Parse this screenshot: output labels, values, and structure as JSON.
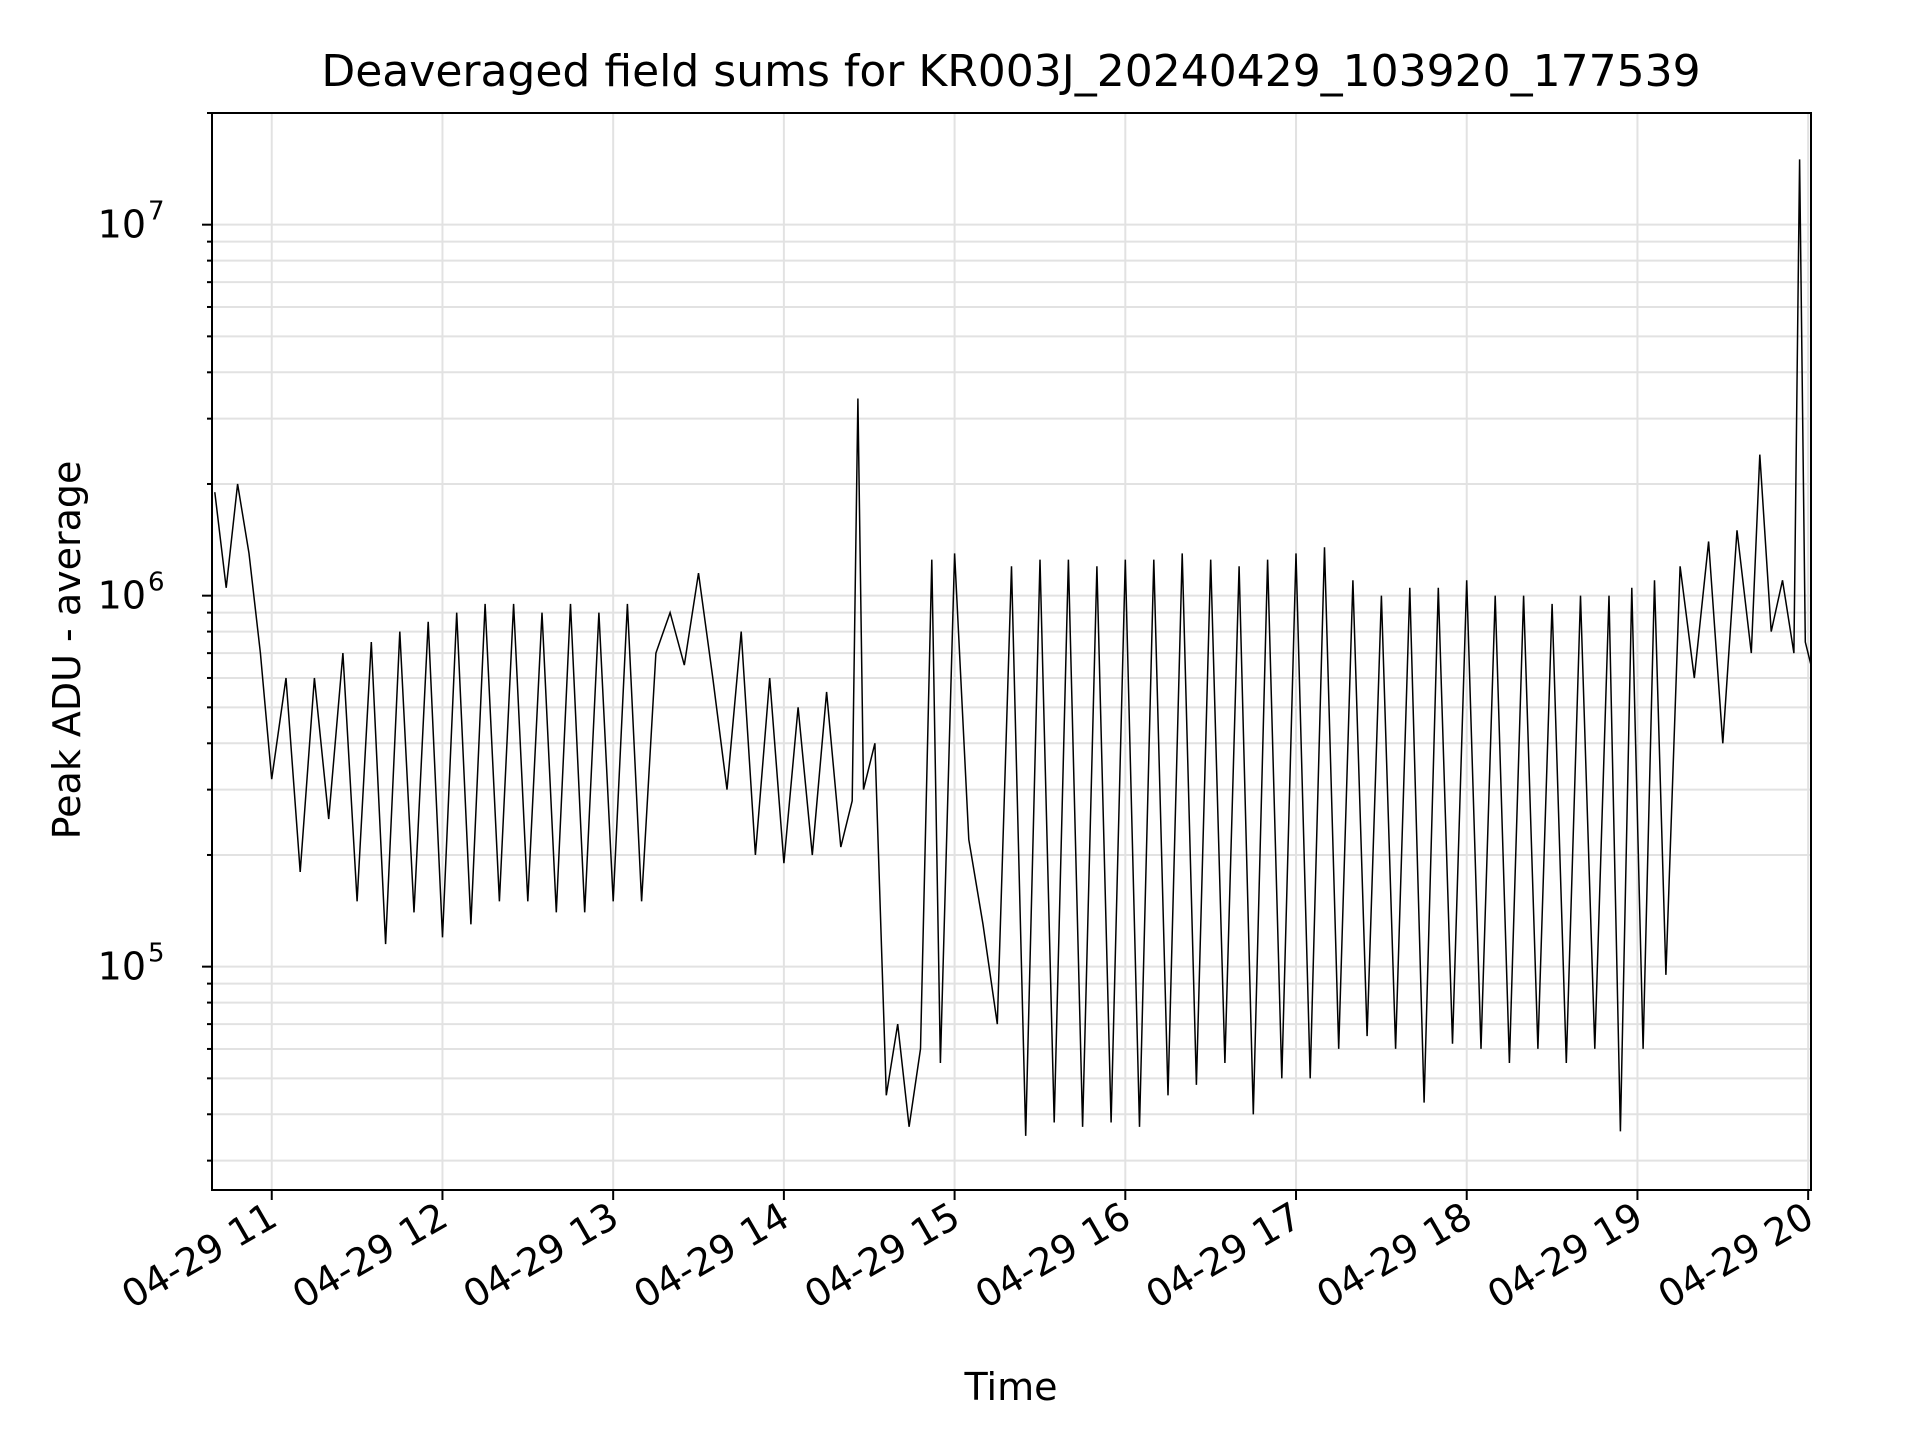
{
  "chart_data": {
    "type": "line",
    "title": "Deaveraged field sums for KR003J_20240429_103920_177539",
    "xlabel": "Time",
    "ylabel": "Peak ADU - average",
    "y_scale": "log",
    "xlim": [
      "04-29 10:39",
      "04-29 20:01"
    ],
    "ylim": [
      25000,
      20000000
    ],
    "grid": true,
    "grid_minor_y": true,
    "line_color": "#000000",
    "x_ticks": [
      "04-29 11",
      "04-29 12",
      "04-29 13",
      "04-29 14",
      "04-29 15",
      "04-29 16",
      "04-29 17",
      "04-29 18",
      "04-29 19",
      "04-29 20"
    ],
    "y_ticks": [
      {
        "value": 100000,
        "base": "10",
        "exp": "5"
      },
      {
        "value": 1000000,
        "base": "10",
        "exp": "6"
      },
      {
        "value": 10000000,
        "base": "10",
        "exp": "7"
      }
    ],
    "series": [
      {
        "values": [
          [
            "04-29 10:40",
            1900000
          ],
          [
            "04-29 10:44",
            1050000
          ],
          [
            "04-29 10:48",
            2000000
          ],
          [
            "04-29 10:52",
            1300000
          ],
          [
            "04-29 10:56",
            700000
          ],
          [
            "04-29 11:00",
            320000
          ],
          [
            "04-29 11:05",
            600000
          ],
          [
            "04-29 11:10",
            180000
          ],
          [
            "04-29 11:15",
            600000
          ],
          [
            "04-29 11:20",
            250000
          ],
          [
            "04-29 11:25",
            700000
          ],
          [
            "04-29 11:30",
            150000
          ],
          [
            "04-29 11:35",
            750000
          ],
          [
            "04-29 11:40",
            115000
          ],
          [
            "04-29 11:45",
            800000
          ],
          [
            "04-29 11:50",
            140000
          ],
          [
            "04-29 11:55",
            850000
          ],
          [
            "04-29 12:00",
            120000
          ],
          [
            "04-29 12:05",
            900000
          ],
          [
            "04-29 12:10",
            130000
          ],
          [
            "04-29 12:15",
            950000
          ],
          [
            "04-29 12:20",
            150000
          ],
          [
            "04-29 12:25",
            950000
          ],
          [
            "04-29 12:30",
            150000
          ],
          [
            "04-29 12:35",
            900000
          ],
          [
            "04-29 12:40",
            140000
          ],
          [
            "04-29 12:45",
            950000
          ],
          [
            "04-29 12:50",
            140000
          ],
          [
            "04-29 12:55",
            900000
          ],
          [
            "04-29 13:00",
            150000
          ],
          [
            "04-29 13:05",
            950000
          ],
          [
            "04-29 13:10",
            150000
          ],
          [
            "04-29 13:15",
            700000
          ],
          [
            "04-29 13:20",
            900000
          ],
          [
            "04-29 13:25",
            650000
          ],
          [
            "04-29 13:30",
            1150000
          ],
          [
            "04-29 13:35",
            600000
          ],
          [
            "04-29 13:40",
            300000
          ],
          [
            "04-29 13:45",
            800000
          ],
          [
            "04-29 13:50",
            200000
          ],
          [
            "04-29 13:55",
            600000
          ],
          [
            "04-29 14:00",
            190000
          ],
          [
            "04-29 14:05",
            500000
          ],
          [
            "04-29 14:10",
            200000
          ],
          [
            "04-29 14:15",
            550000
          ],
          [
            "04-29 14:20",
            210000
          ],
          [
            "04-29 14:24",
            280000
          ],
          [
            "04-29 14:26",
            3400000
          ],
          [
            "04-29 14:28",
            300000
          ],
          [
            "04-29 14:32",
            400000
          ],
          [
            "04-29 14:36",
            45000
          ],
          [
            "04-29 14:40",
            70000
          ],
          [
            "04-29 14:44",
            37000
          ],
          [
            "04-29 14:48",
            60000
          ],
          [
            "04-29 14:52",
            1250000
          ],
          [
            "04-29 14:55",
            55000
          ],
          [
            "04-29 15:00",
            1300000
          ],
          [
            "04-29 15:05",
            220000
          ],
          [
            "04-29 15:10",
            130000
          ],
          [
            "04-29 15:15",
            70000
          ],
          [
            "04-29 15:20",
            1200000
          ],
          [
            "04-29 15:25",
            35000
          ],
          [
            "04-29 15:30",
            1250000
          ],
          [
            "04-29 15:35",
            38000
          ],
          [
            "04-29 15:40",
            1250000
          ],
          [
            "04-29 15:45",
            37000
          ],
          [
            "04-29 15:50",
            1200000
          ],
          [
            "04-29 15:55",
            38000
          ],
          [
            "04-29 16:00",
            1250000
          ],
          [
            "04-29 16:05",
            37000
          ],
          [
            "04-29 16:10",
            1250000
          ],
          [
            "04-29 16:15",
            45000
          ],
          [
            "04-29 16:20",
            1300000
          ],
          [
            "04-29 16:25",
            48000
          ],
          [
            "04-29 16:30",
            1250000
          ],
          [
            "04-29 16:35",
            55000
          ],
          [
            "04-29 16:40",
            1200000
          ],
          [
            "04-29 16:45",
            40000
          ],
          [
            "04-29 16:50",
            1250000
          ],
          [
            "04-29 16:55",
            50000
          ],
          [
            "04-29 17:00",
            1300000
          ],
          [
            "04-29 17:05",
            50000
          ],
          [
            "04-29 17:10",
            1350000
          ],
          [
            "04-29 17:15",
            60000
          ],
          [
            "04-29 17:20",
            1100000
          ],
          [
            "04-29 17:25",
            65000
          ],
          [
            "04-29 17:30",
            1000000
          ],
          [
            "04-29 17:35",
            60000
          ],
          [
            "04-29 17:40",
            1050000
          ],
          [
            "04-29 17:45",
            43000
          ],
          [
            "04-29 17:50",
            1050000
          ],
          [
            "04-29 17:55",
            62000
          ],
          [
            "04-29 18:00",
            1100000
          ],
          [
            "04-29 18:05",
            60000
          ],
          [
            "04-29 18:10",
            1000000
          ],
          [
            "04-29 18:15",
            55000
          ],
          [
            "04-29 18:20",
            1000000
          ],
          [
            "04-29 18:25",
            60000
          ],
          [
            "04-29 18:30",
            950000
          ],
          [
            "04-29 18:35",
            55000
          ],
          [
            "04-29 18:40",
            1000000
          ],
          [
            "04-29 18:45",
            60000
          ],
          [
            "04-29 18:50",
            1000000
          ],
          [
            "04-29 18:54",
            36000
          ],
          [
            "04-29 18:58",
            1050000
          ],
          [
            "04-29 19:02",
            60000
          ],
          [
            "04-29 19:06",
            1100000
          ],
          [
            "04-29 19:10",
            95000
          ],
          [
            "04-29 19:15",
            1200000
          ],
          [
            "04-29 19:20",
            600000
          ],
          [
            "04-29 19:25",
            1400000
          ],
          [
            "04-29 19:30",
            400000
          ],
          [
            "04-29 19:35",
            1500000
          ],
          [
            "04-29 19:40",
            700000
          ],
          [
            "04-29 19:43",
            2400000
          ],
          [
            "04-29 19:47",
            800000
          ],
          [
            "04-29 19:51",
            1100000
          ],
          [
            "04-29 19:55",
            700000
          ],
          [
            "04-29 19:57",
            15000000
          ],
          [
            "04-29 19:59",
            750000
          ],
          [
            "04-29 20:01",
            650000
          ]
        ]
      }
    ]
  }
}
